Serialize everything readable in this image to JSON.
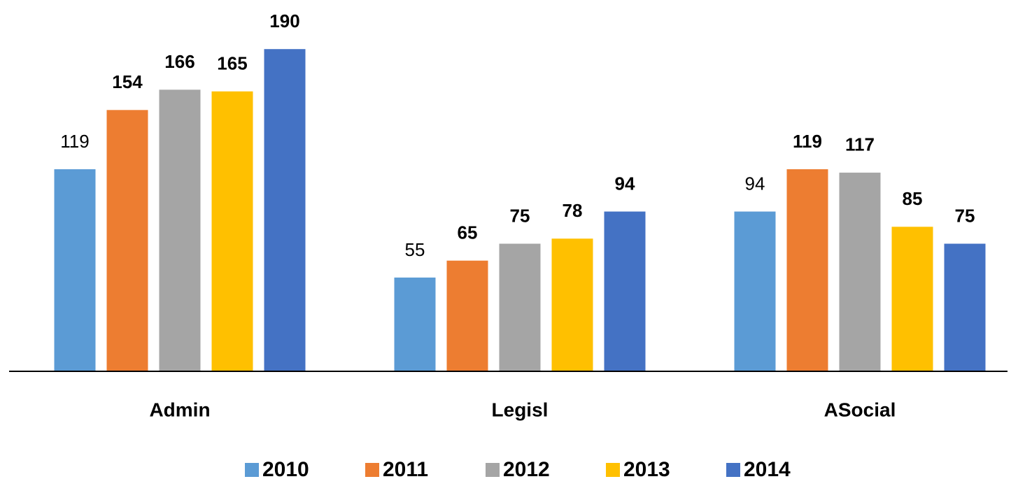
{
  "chart_data": {
    "type": "bar",
    "categories": [
      "Admin",
      "Legisl",
      "ASocial"
    ],
    "series": [
      {
        "name": "2010",
        "color": "#5b9bd5",
        "values": [
          119,
          55,
          94
        ]
      },
      {
        "name": "2011",
        "color": "#ed7d31",
        "values": [
          154,
          65,
          119
        ]
      },
      {
        "name": "2012",
        "color": "#a5a5a5",
        "values": [
          166,
          75,
          117
        ]
      },
      {
        "name": "2013",
        "color": "#ffc000",
        "values": [
          165,
          78,
          85
        ]
      },
      {
        "name": "2014",
        "color": "#4472c4",
        "values": [
          190,
          94,
          75
        ]
      }
    ],
    "legend": "bottom"
  }
}
